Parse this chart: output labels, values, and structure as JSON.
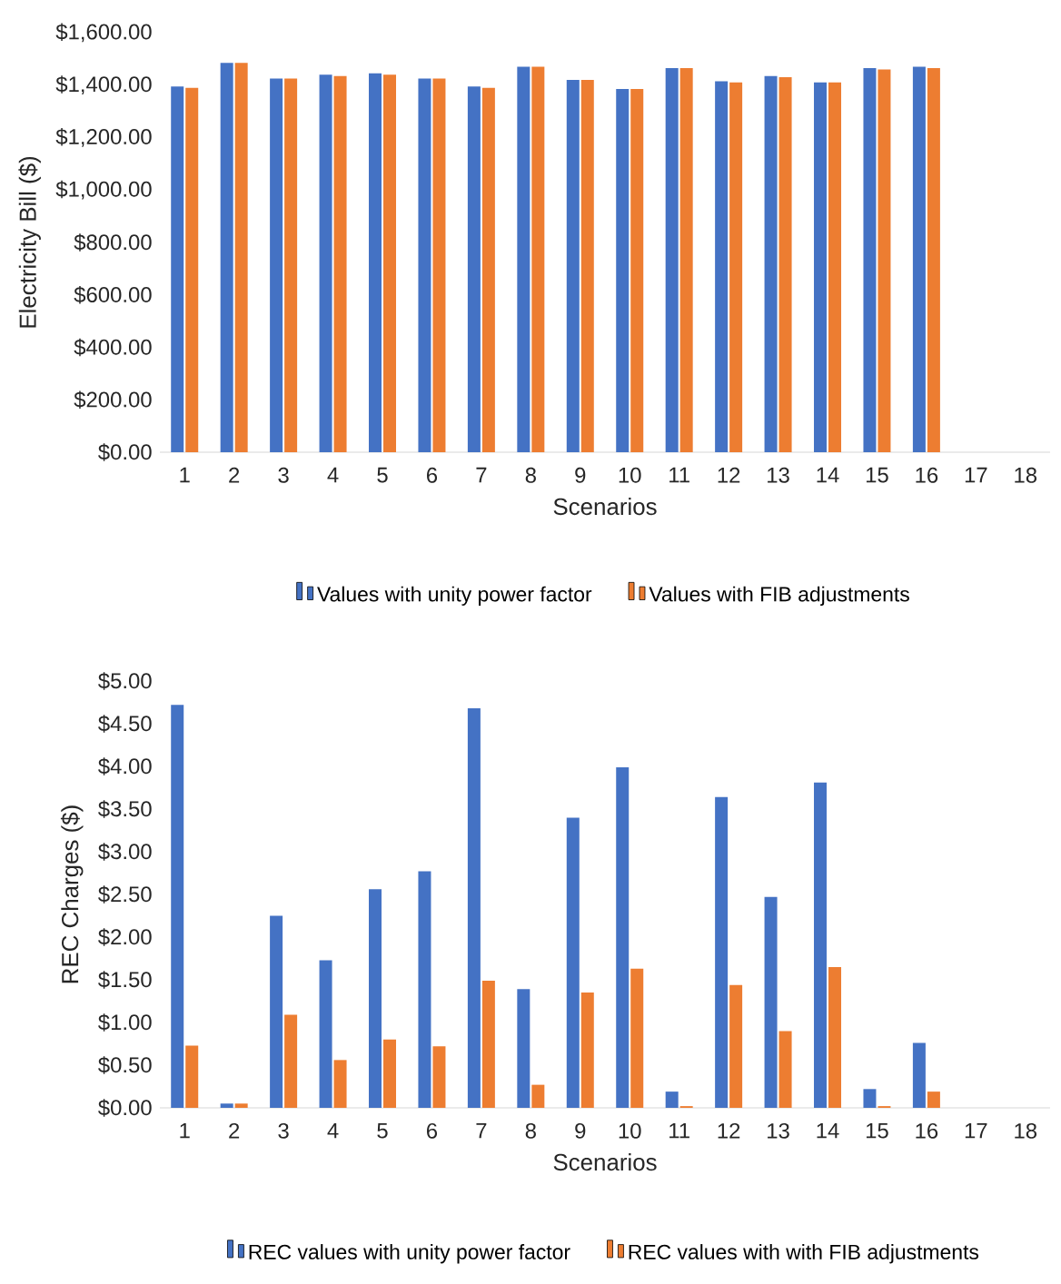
{
  "chart_data": [
    {
      "type": "bar",
      "xlabel": "Scenarios",
      "ylabel": "Electricity Bill ($)",
      "legend": "bottom",
      "categories": [
        "1",
        "2",
        "3",
        "4",
        "5",
        "6",
        "7",
        "8",
        "9",
        "10",
        "11",
        "12",
        "13",
        "14",
        "15",
        "16",
        "17",
        "18"
      ],
      "ylim": [
        0,
        1600
      ],
      "yticks": [
        {
          "value": 0,
          "label": "$0.00"
        },
        {
          "value": 200,
          "label": "$200.00"
        },
        {
          "value": 400,
          "label": "$400.00"
        },
        {
          "value": 600,
          "label": "$600.00"
        },
        {
          "value": 800,
          "label": "$800.00"
        },
        {
          "value": 1000,
          "label": "$1,000.00"
        },
        {
          "value": 1200,
          "label": "$1,200.00"
        },
        {
          "value": 1400,
          "label": "$1,400.00"
        },
        {
          "value": 1600,
          "label": "$1,600.00"
        }
      ],
      "series": [
        {
          "name": "Values with unity power factor",
          "color": "#4472c4",
          "values": [
            1395,
            1485,
            1425,
            1440,
            1445,
            1425,
            1395,
            1470,
            1420,
            1385,
            1465,
            1415,
            1435,
            1410,
            1465,
            1470,
            null,
            null
          ]
        },
        {
          "name": "Values with FIB adjustments",
          "color": "#ed7d31",
          "values": [
            1390,
            1485,
            1425,
            1435,
            1440,
            1425,
            1390,
            1470,
            1420,
            1385,
            1465,
            1410,
            1430,
            1410,
            1460,
            1465,
            null,
            null
          ]
        }
      ]
    },
    {
      "type": "bar",
      "xlabel": "Scenarios",
      "ylabel": "REC Charges ($)",
      "legend": "bottom",
      "categories": [
        "1",
        "2",
        "3",
        "4",
        "5",
        "6",
        "7",
        "8",
        "9",
        "10",
        "11",
        "12",
        "13",
        "14",
        "15",
        "16",
        "17",
        "18"
      ],
      "ylim": [
        0,
        5
      ],
      "yticks": [
        {
          "value": 0,
          "label": "$0.00"
        },
        {
          "value": 0.5,
          "label": "$0.50"
        },
        {
          "value": 1,
          "label": "$1.00"
        },
        {
          "value": 1.5,
          "label": "$1.50"
        },
        {
          "value": 2,
          "label": "$2.00"
        },
        {
          "value": 2.5,
          "label": "$2.50"
        },
        {
          "value": 3,
          "label": "$3.00"
        },
        {
          "value": 3.5,
          "label": "$3.50"
        },
        {
          "value": 4,
          "label": "$4.00"
        },
        {
          "value": 4.5,
          "label": "$4.50"
        },
        {
          "value": 5,
          "label": "$5.00"
        }
      ],
      "series": [
        {
          "name": "REC values with unity power factor",
          "color": "#4472c4",
          "values": [
            4.72,
            0.05,
            2.25,
            1.73,
            2.56,
            2.77,
            4.68,
            1.39,
            3.4,
            3.99,
            0.19,
            3.64,
            2.47,
            3.81,
            0.22,
            0.76,
            null,
            null
          ]
        },
        {
          "name": "REC values with  with FIB adjustments",
          "color": "#ed7d31",
          "values": [
            0.73,
            0.05,
            1.09,
            0.56,
            0.8,
            0.72,
            1.49,
            0.27,
            1.35,
            1.63,
            0.02,
            1.44,
            0.9,
            1.65,
            0.02,
            0.19,
            null,
            null
          ]
        }
      ]
    }
  ]
}
